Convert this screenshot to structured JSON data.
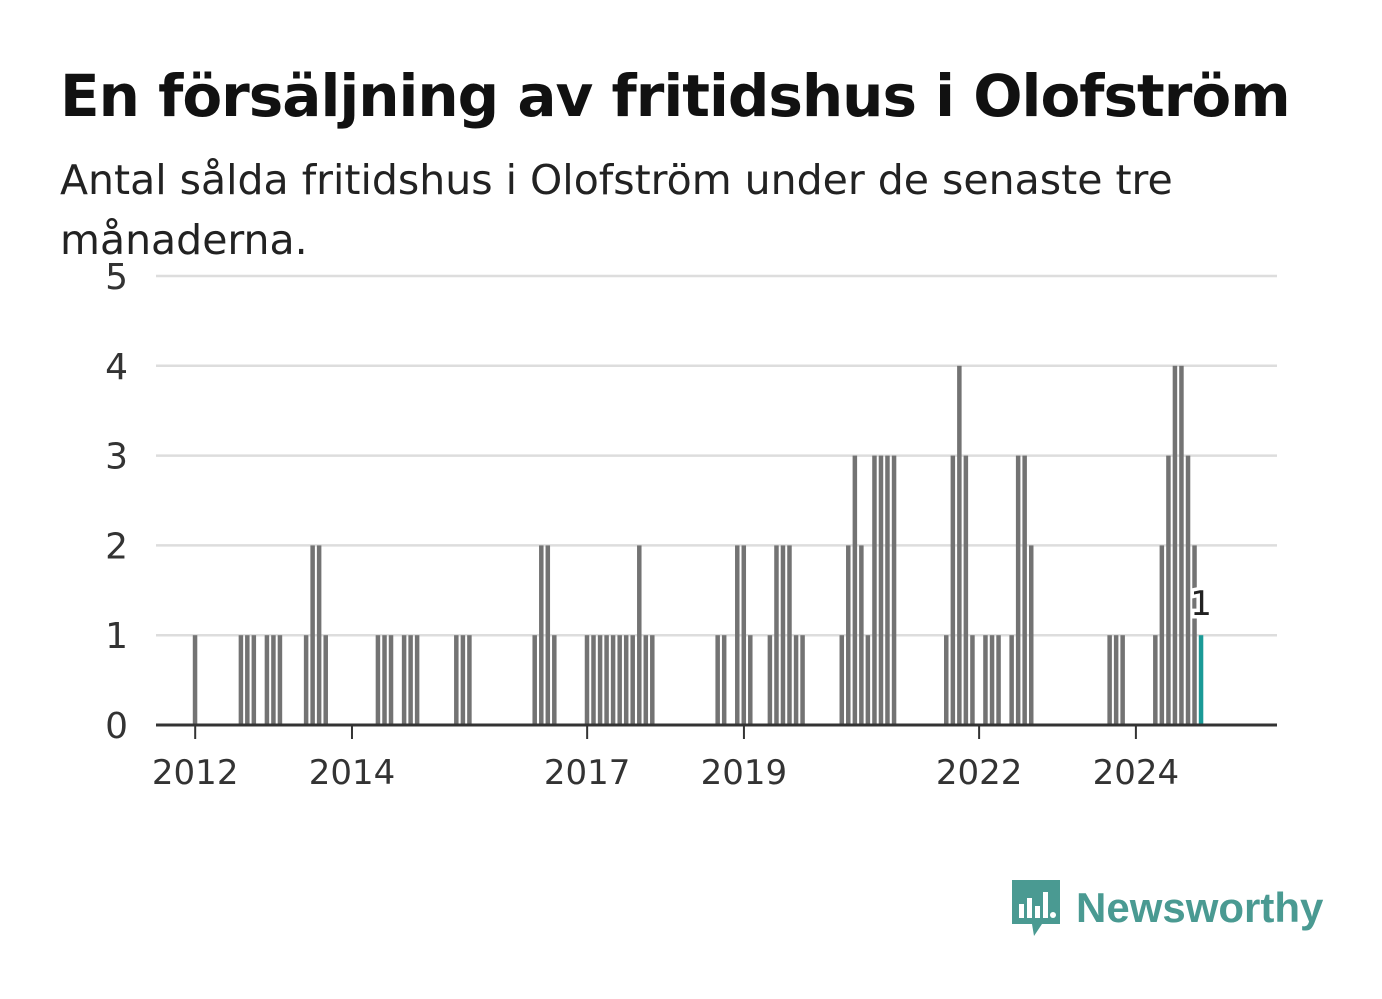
{
  "header": {
    "title": "En försäljning av fritidshus i Olofström",
    "subtitle": "Antal sålda fritidshus i Olofström under de senaste tre månaderna."
  },
  "brand": {
    "name": "Newsworthy",
    "icon": "newsworthy-logo-icon",
    "color": "#4a9a92"
  },
  "chart_data": {
    "type": "bar",
    "xlim": [
      2011.5,
      2025.8
    ],
    "ylim": [
      0,
      5
    ],
    "yticks": [
      0,
      1,
      2,
      3,
      4,
      5
    ],
    "xticks": [
      2012,
      2014,
      2017,
      2019,
      2022,
      2024
    ],
    "grid": true,
    "bar_color": "#737373",
    "highlight_color": "#1a9a97",
    "x": [
      2011.998,
      2012.583,
      2012.665,
      2012.748,
      2012.915,
      2012.998,
      2013.081,
      2013.415,
      2013.498,
      2013.581,
      2013.665,
      2014.331,
      2014.415,
      2014.498,
      2014.665,
      2014.748,
      2014.831,
      2015.331,
      2015.415,
      2015.498,
      2016.331,
      2016.415,
      2016.498,
      2016.581,
      2016.998,
      2017.081,
      2017.165,
      2017.248,
      2017.331,
      2017.415,
      2017.498,
      2017.581,
      2017.665,
      2017.748,
      2017.831,
      2018.665,
      2018.748,
      2018.915,
      2018.998,
      2019.081,
      2019.331,
      2019.415,
      2019.498,
      2019.581,
      2019.665,
      2019.748,
      2020.248,
      2020.331,
      2020.415,
      2020.498,
      2020.581,
      2020.665,
      2020.748,
      2020.831,
      2020.915,
      2021.581,
      2021.665,
      2021.748,
      2021.831,
      2021.915,
      2022.081,
      2022.165,
      2022.248,
      2022.415,
      2022.498,
      2022.581,
      2022.665,
      2023.665,
      2023.748,
      2023.831,
      2024.248,
      2024.331,
      2024.415,
      2024.498,
      2024.581,
      2024.665,
      2024.748,
      2024.831
    ],
    "values": [
      1,
      1,
      1,
      1,
      1,
      1,
      1,
      1,
      2,
      2,
      1,
      1,
      1,
      1,
      1,
      1,
      1,
      1,
      1,
      1,
      1,
      2,
      2,
      1,
      1,
      1,
      1,
      1,
      1,
      1,
      1,
      1,
      2,
      1,
      1,
      1,
      1,
      2,
      2,
      1,
      1,
      2,
      2,
      2,
      1,
      1,
      1,
      2,
      3,
      2,
      1,
      3,
      3,
      3,
      3,
      1,
      3,
      4,
      3,
      1,
      1,
      1,
      1,
      1,
      3,
      3,
      2,
      1,
      1,
      1,
      1,
      2,
      3,
      4,
      4,
      3,
      2,
      1
    ],
    "annotation": {
      "text": "1",
      "index": 77
    }
  }
}
